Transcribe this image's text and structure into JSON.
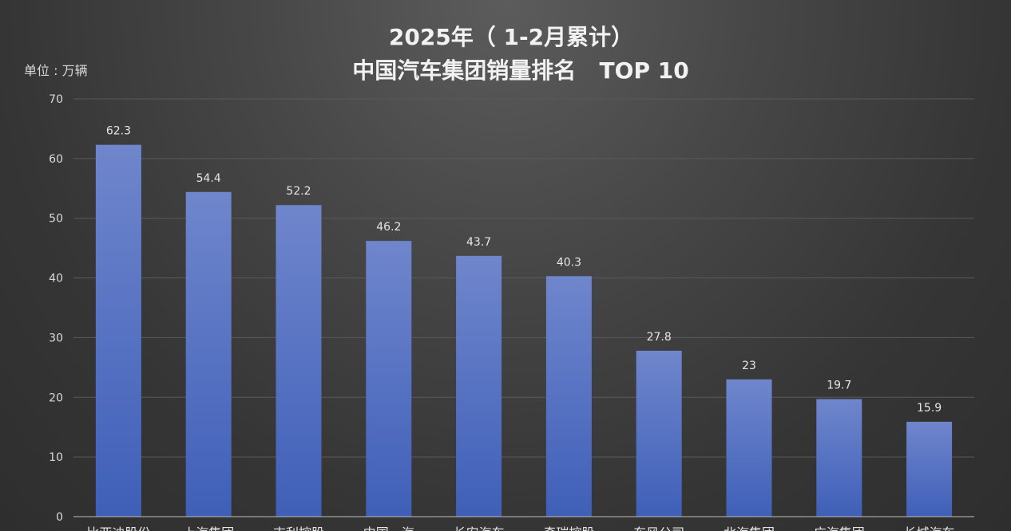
{
  "chart_data": {
    "type": "bar",
    "title": "2025年（ 1-2月累计）",
    "subtitle": "中国汽车集团销量排名   TOP 10",
    "unit_label": "单位 : 万辆",
    "ylim": [
      0,
      70
    ],
    "yticks": [
      0,
      10,
      20,
      30,
      40,
      50,
      60,
      70
    ],
    "grid": true,
    "legend": "none",
    "bar_color_top": "#6f86cc",
    "bar_color_bottom": "#3f5fb8",
    "categories": [
      "比亚迪股份",
      "上汽集团",
      "吉利控股",
      "中国一汽",
      "长安汽车",
      "奇瑞控股",
      "东风公司",
      "北汽集团",
      "广汽集团",
      "长城汽车"
    ],
    "values": [
      62.3,
      54.4,
      52.2,
      46.2,
      43.7,
      40.3,
      27.8,
      23,
      19.7,
      15.9
    ],
    "value_labels": [
      "62.3",
      "54.4",
      "52.2",
      "46.2",
      "43.7",
      "40.3",
      "27.8",
      "23",
      "19.7",
      "15.9"
    ]
  }
}
